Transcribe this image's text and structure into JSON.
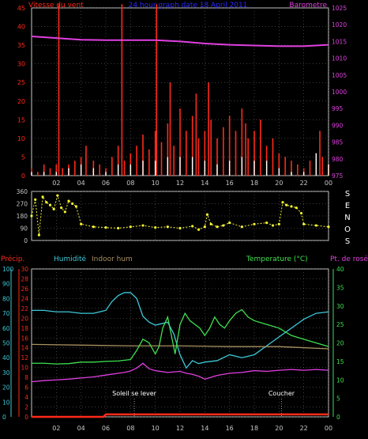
{
  "colors": {
    "background": "#000000",
    "frame": "#c8c8c8",
    "grid": "#7a7a7a",
    "wind": "#ff2a1a",
    "gust": "#ffffff",
    "avg_wind": "#f5f566",
    "barometer": "#e040e0",
    "direction": "#f5f532",
    "humidity": "#3ec8d8",
    "indoor_hum": "#a89060",
    "temperature": "#3ee050",
    "dewpoint": "#e040e0",
    "precip": "#ff2a1a",
    "date": "#2828ff",
    "dir_label": "#ffffff",
    "cyan_axis": "#3ec8d8",
    "green_axis": "#3ee050",
    "annotation": "#ffffff"
  },
  "chart_data": [
    {
      "type": "bar",
      "title": "24 hour graph date 18 April 2011",
      "left_label": "Vitesse du vent",
      "right_label": "Barometre",
      "x_ticks": [
        "02",
        "04",
        "06",
        "08",
        "10",
        "12",
        "14",
        "16",
        "18",
        "20",
        "22",
        "00"
      ],
      "x_range_hours": [
        0,
        24
      ],
      "y_left_ticks": [
        0,
        5,
        10,
        15,
        20,
        25,
        30,
        35,
        40,
        45
      ],
      "y_left_range": [
        0,
        45
      ],
      "y_right_ticks": [
        975,
        980,
        985,
        990,
        995,
        1000,
        1005,
        1010,
        1015,
        1020,
        1025
      ],
      "y_right_range": [
        975,
        1025
      ],
      "series": [
        {
          "name": "Wind",
          "x": [
            0,
            0.5,
            1,
            1.5,
            2,
            2.2,
            2.5,
            3,
            3.5,
            4,
            4.4,
            5,
            5.5,
            6,
            6.5,
            7,
            7.3,
            7.5,
            8,
            8.5,
            9,
            9.5,
            10,
            10.1,
            10.5,
            11,
            11.2,
            11.5,
            12,
            12.5,
            13,
            13.3,
            13.5,
            14,
            14.3,
            14.5,
            15,
            15.5,
            16,
            16.5,
            17,
            17.3,
            17.5,
            18,
            18.5,
            19,
            19.5,
            20,
            20.5,
            21,
            21.5,
            22,
            22.5,
            23,
            23.3,
            23.5,
            24
          ],
          "values": [
            2,
            1,
            3,
            2,
            3,
            46,
            2,
            3,
            4,
            5,
            8,
            4,
            3,
            2,
            5,
            8,
            46,
            4,
            6,
            8,
            11,
            7,
            12,
            46,
            9,
            14,
            25,
            8,
            18,
            12,
            16,
            22,
            10,
            12,
            25,
            15,
            10,
            13,
            16,
            12,
            18,
            14,
            10,
            12,
            15,
            8,
            10,
            6,
            5,
            4,
            3,
            2,
            4,
            6,
            12,
            5,
            3
          ]
        },
        {
          "name": "Gust",
          "x": [
            0,
            1,
            2,
            3,
            4,
            5,
            6,
            7,
            8,
            9,
            10,
            11,
            12,
            13,
            14,
            15,
            16,
            17,
            18,
            19,
            20,
            21,
            22,
            23,
            24
          ],
          "values": [
            1,
            1,
            1,
            2,
            3,
            2,
            1,
            3,
            3,
            4,
            4,
            5,
            5,
            5,
            4,
            3,
            4,
            5,
            4,
            4,
            2,
            1,
            1,
            6,
            3
          ]
        },
        {
          "name": "Barometre",
          "axis": "right",
          "x": [
            0,
            2,
            4,
            6,
            8,
            10,
            12,
            14,
            16,
            18,
            20,
            22,
            23,
            24
          ],
          "values": [
            1016.5,
            1016,
            1015.5,
            1015.4,
            1015.4,
            1015.4,
            1015,
            1014.4,
            1014,
            1013.8,
            1013.6,
            1013.6,
            1013.8,
            1014
          ]
        }
      ]
    },
    {
      "type": "scatter",
      "title": "",
      "side_label": [
        "S",
        "E",
        "N",
        "O",
        "S"
      ],
      "x_ticks": [
        "02",
        "04",
        "06",
        "08",
        "10",
        "12",
        "14",
        "16",
        "18",
        "20",
        "22",
        "00"
      ],
      "y_ticks": [
        0,
        90,
        180,
        270,
        360
      ],
      "y_range": [
        0,
        360
      ],
      "series": [
        {
          "name": "Direction",
          "x": [
            0,
            0.3,
            0.6,
            0.9,
            1.2,
            1.5,
            1.8,
            2.1,
            2.4,
            2.7,
            3,
            3.3,
            3.6,
            4,
            5,
            6,
            7,
            8,
            9,
            10,
            11,
            12,
            13,
            13.5,
            14,
            14.2,
            14.5,
            15,
            15.5,
            16,
            17,
            18,
            19,
            19.5,
            20,
            20.3,
            20.6,
            21,
            21.4,
            21.8,
            22,
            23,
            24
          ],
          "values": [
            180,
            300,
            40,
            320,
            280,
            260,
            230,
            330,
            240,
            210,
            290,
            270,
            250,
            120,
            100,
            95,
            90,
            100,
            110,
            95,
            100,
            90,
            105,
            80,
            100,
            190,
            120,
            100,
            110,
            130,
            100,
            120,
            130,
            110,
            120,
            280,
            260,
            250,
            240,
            200,
            120,
            110,
            100
          ]
        }
      ]
    },
    {
      "type": "line",
      "title": "",
      "labels": {
        "precip": "Précip.",
        "humidity": "Humidité",
        "indoor_hum": "Indoor hum",
        "temperature": "Temperature (°C)",
        "dewpoint": "Pt. de rosée"
      },
      "annotations": [
        {
          "text": "Soleil se lever",
          "hour": 8.3
        },
        {
          "text": "Coucher",
          "hour": 20.2
        }
      ],
      "x_ticks": [
        "02",
        "04",
        "06",
        "08",
        "10",
        "12",
        "14",
        "16",
        "18",
        "20",
        "22",
        "00"
      ],
      "y_pct_ticks": [
        0,
        10,
        20,
        30,
        40,
        50,
        60,
        70,
        80,
        90,
        100
      ],
      "y_precip_ticks": [
        0,
        2,
        4,
        6,
        8,
        10,
        12,
        14,
        16,
        18,
        20,
        22,
        24,
        26,
        28,
        30
      ],
      "y_temp_ticks": [
        0,
        5,
        10,
        15,
        20,
        25,
        30,
        35,
        40
      ],
      "y_temp_range": [
        0,
        40
      ],
      "series": [
        {
          "name": "Humidité",
          "axis": "pct",
          "x": [
            0,
            1,
            2,
            3,
            4,
            5,
            6,
            6.5,
            7,
            7.5,
            8,
            8.5,
            9,
            9.5,
            10,
            10.5,
            11,
            11.5,
            12,
            12.5,
            13,
            13.5,
            14,
            15,
            16,
            17,
            18,
            19,
            20,
            21,
            22,
            23,
            24
          ],
          "values": [
            72,
            72,
            71,
            71,
            70,
            70,
            72,
            78,
            82,
            84,
            84,
            80,
            68,
            64,
            62,
            63,
            64,
            56,
            42,
            33,
            38,
            36,
            37,
            38,
            42,
            40,
            42,
            48,
            54,
            60,
            66,
            70,
            71
          ]
        },
        {
          "name": "Indoor hum",
          "axis": "pct",
          "x": [
            0,
            4,
            8,
            12,
            16,
            20,
            24
          ],
          "values": [
            49,
            48.5,
            48,
            48,
            47.5,
            47.5,
            46
          ]
        },
        {
          "name": "Temperature",
          "axis": "temp",
          "x": [
            0,
            1,
            2,
            3,
            4,
            5,
            6,
            7,
            8,
            8.5,
            9,
            9.5,
            10,
            10.3,
            10.6,
            11,
            11.3,
            11.6,
            12,
            12.4,
            12.8,
            13.2,
            13.6,
            14,
            14.4,
            14.8,
            15.2,
            15.6,
            16,
            16.5,
            17,
            17.5,
            18,
            19,
            20,
            21,
            22,
            23,
            24
          ],
          "values": [
            14.5,
            14.5,
            14.3,
            14.4,
            14.8,
            14.8,
            15,
            15.1,
            15.5,
            18,
            21,
            20,
            17,
            19,
            24,
            27,
            22,
            17,
            25,
            28,
            26,
            25,
            24,
            22,
            24,
            27,
            25,
            24,
            26,
            28,
            29,
            27,
            26,
            25,
            24,
            22,
            21,
            20,
            19
          ]
        },
        {
          "name": "Pt. de rosée",
          "axis": "temp",
          "x": [
            0,
            1,
            2,
            3,
            4,
            5,
            6,
            7,
            7.5,
            8,
            8.5,
            9,
            9.5,
            10,
            11,
            12,
            12.5,
            13,
            13.5,
            14,
            15,
            16,
            17,
            18,
            19,
            20,
            21,
            22,
            23,
            24
          ],
          "values": [
            9.5,
            9.8,
            10,
            10.2,
            10.5,
            10.8,
            11.3,
            11.8,
            12,
            12.4,
            13.2,
            14.5,
            13,
            12.5,
            12,
            12.3,
            11.8,
            11.5,
            11,
            10.2,
            11.2,
            11.8,
            12,
            12.5,
            12.3,
            12.6,
            12.8,
            12.6,
            12.8,
            12.6
          ]
        },
        {
          "name": "Précip.",
          "axis": "precip",
          "x": [
            0,
            4,
            5.8,
            6,
            24
          ],
          "values": [
            0,
            0,
            0,
            0.5,
            0.5
          ]
        }
      ]
    }
  ]
}
